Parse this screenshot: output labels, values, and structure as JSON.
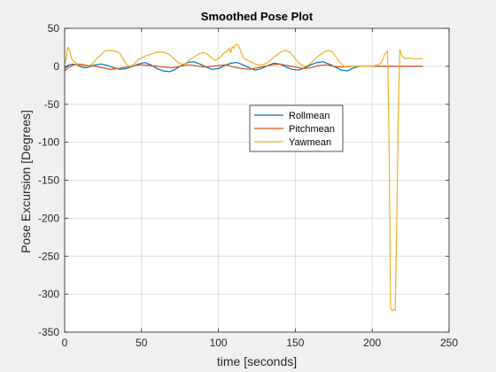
{
  "chart_data": {
    "type": "line",
    "title": "Smoothed Pose Plot",
    "xlabel": "time [seconds]",
    "ylabel": "Pose Excursion [Degrees]",
    "xlim": [
      0,
      250
    ],
    "ylim": [
      -350,
      50
    ],
    "xticks": [
      "0",
      "50",
      "100",
      "150",
      "200",
      "250"
    ],
    "yticks": [
      "50",
      "0",
      "-50",
      "-100",
      "-150",
      "-200",
      "-250",
      "-300",
      "-350"
    ],
    "grid": true,
    "legend_position": "center-right",
    "series": [
      {
        "name": "Rollmean",
        "color": "#0072bd",
        "x": [
          0,
          2,
          5,
          8,
          11,
          14,
          17,
          20,
          24,
          28,
          32,
          36,
          40,
          44,
          48,
          52,
          56,
          60,
          64,
          68,
          72,
          76,
          80,
          84,
          88,
          92,
          96,
          100,
          104,
          108,
          112,
          116,
          120,
          124,
          128,
          132,
          136,
          140,
          144,
          148,
          152,
          156,
          160,
          164,
          168,
          172,
          176,
          180,
          184,
          188,
          192,
          196,
          200,
          205,
          210,
          215,
          220,
          225,
          233
        ],
        "y": [
          -3,
          1,
          3,
          2,
          -1,
          -2,
          0,
          2,
          3,
          1,
          -2,
          -4,
          -3,
          0,
          3,
          5,
          2,
          -3,
          -6,
          -7,
          -4,
          1,
          5,
          6,
          3,
          -1,
          -4,
          -3,
          1,
          4,
          5,
          2,
          -2,
          -5,
          -3,
          1,
          4,
          3,
          -1,
          -4,
          -5,
          -2,
          2,
          5,
          6,
          3,
          -1,
          -5,
          -6,
          -2,
          0,
          0,
          0,
          0,
          0,
          0,
          0,
          0,
          0
        ]
      },
      {
        "name": "Pitchmean",
        "color": "#d95319",
        "x": [
          0,
          3,
          6,
          10,
          15,
          20,
          25,
          30,
          35,
          40,
          45,
          50,
          55,
          60,
          65,
          70,
          75,
          80,
          85,
          90,
          95,
          100,
          105,
          110,
          115,
          120,
          125,
          130,
          135,
          140,
          145,
          150,
          155,
          160,
          165,
          170,
          175,
          180,
          185,
          190,
          195,
          200,
          210,
          220,
          233
        ],
        "y": [
          -6,
          -1,
          2,
          3,
          1,
          0,
          -2,
          -4,
          -3,
          -1,
          1,
          2,
          1,
          0,
          -1,
          -2,
          0,
          2,
          1,
          -1,
          0,
          1,
          2,
          -1,
          -3,
          -4,
          -2,
          0,
          2,
          3,
          1,
          -1,
          -3,
          -2,
          1,
          2,
          0,
          -1,
          0,
          0,
          0,
          0,
          0,
          0,
          0
        ]
      },
      {
        "name": "Yawmean",
        "color": "#edb120",
        "x": [
          0,
          1,
          2,
          3,
          4,
          5,
          7,
          9,
          12,
          15,
          18,
          20,
          22,
          24,
          26,
          28,
          30,
          33,
          36,
          38,
          40,
          42,
          44,
          46,
          48,
          50,
          53,
          56,
          59,
          62,
          65,
          68,
          70,
          72,
          74,
          76,
          78,
          80,
          82,
          84,
          86,
          88,
          90,
          92,
          94,
          96,
          98,
          100,
          102,
          104,
          106,
          107,
          108,
          109,
          110,
          111,
          112,
          113,
          114,
          115,
          116,
          118,
          120,
          122,
          124,
          126,
          128,
          130,
          132,
          134,
          136,
          138,
          140,
          142,
          144,
          146,
          148,
          150,
          152,
          154,
          156,
          158,
          160,
          162,
          164,
          166,
          168,
          170,
          172,
          174,
          176,
          178,
          180,
          182,
          184,
          186,
          188,
          190,
          192,
          194,
          196,
          198,
          200,
          202,
          204,
          206,
          207,
          208,
          209,
          210,
          211,
          212,
          213,
          214,
          215,
          216,
          217,
          218,
          219,
          220,
          221,
          222,
          224,
          226,
          228,
          230,
          233
        ],
        "y": [
          3,
          10,
          25,
          22,
          14,
          8,
          5,
          2,
          1,
          0,
          3,
          8,
          12,
          16,
          20,
          21,
          21,
          20,
          17,
          10,
          3,
          0,
          1,
          5,
          9,
          11,
          14,
          16,
          18,
          19,
          18,
          16,
          12,
          8,
          5,
          3,
          3,
          6,
          10,
          12,
          15,
          17,
          18,
          17,
          14,
          10,
          8,
          10,
          14,
          18,
          20,
          24,
          18,
          26,
          24,
          28,
          29,
          27,
          23,
          17,
          12,
          9,
          7,
          5,
          3,
          2,
          2,
          3,
          5,
          8,
          12,
          15,
          18,
          20,
          21,
          19,
          15,
          10,
          5,
          2,
          0,
          1,
          4,
          8,
          12,
          15,
          18,
          20,
          21,
          19,
          14,
          8,
          3,
          0,
          -1,
          0,
          0,
          0,
          0,
          0,
          0,
          0,
          0,
          1,
          2,
          5,
          10,
          15,
          18,
          20,
          -100,
          -318,
          -322,
          -320,
          -321,
          -200,
          -60,
          22,
          15,
          12,
          11,
          10,
          11,
          10,
          10,
          10,
          10
        ]
      }
    ]
  }
}
